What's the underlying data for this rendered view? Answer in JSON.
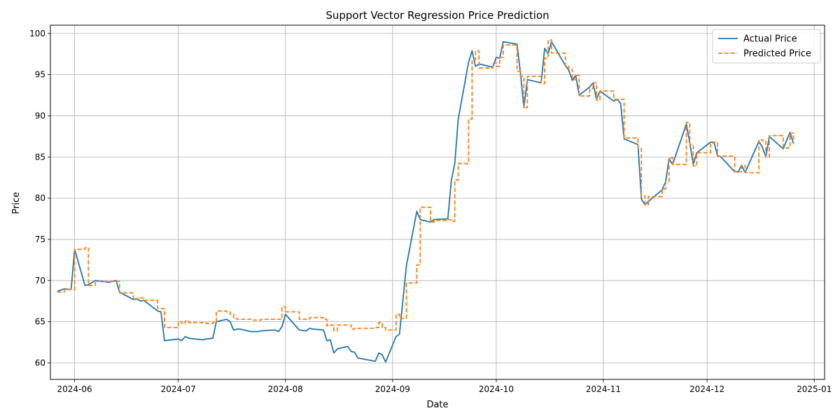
{
  "chart_data": {
    "type": "line",
    "title": "Support Vector Regression Price Prediction",
    "xlabel": "Date",
    "ylabel": "Price",
    "xlim": [
      "2024-05-25",
      "2025-01-04"
    ],
    "ylim": [
      58,
      101
    ],
    "x_ticks": [
      "2024-06-01",
      "2024-07-01",
      "2024-08-01",
      "2024-09-01",
      "2024-10-01",
      "2024-11-01",
      "2024-12-01",
      "2025-01-01"
    ],
    "x_tick_labels": [
      "2024-06",
      "2024-07",
      "2024-08",
      "2024-09",
      "2024-10",
      "2024-11",
      "2024-12",
      "2025-01"
    ],
    "y_ticks": [
      60,
      65,
      70,
      75,
      80,
      85,
      90,
      95,
      100
    ],
    "y_tick_labels": [
      "60",
      "65",
      "70",
      "75",
      "80",
      "85",
      "90",
      "95",
      "100"
    ],
    "grid": true,
    "legend_position": "top-right",
    "series": [
      {
        "name": "Actual Price",
        "color": "#1f77b4",
        "style": "solid",
        "x": [
          "2024-05-27",
          "2024-05-29",
          "2024-05-31",
          "2024-06-01",
          "2024-06-04",
          "2024-06-05",
          "2024-06-07",
          "2024-06-11",
          "2024-06-13",
          "2024-06-14",
          "2024-06-18",
          "2024-06-19",
          "2024-06-20",
          "2024-06-21",
          "2024-06-25",
          "2024-06-26",
          "2024-06-27",
          "2024-07-01",
          "2024-07-02",
          "2024-07-03",
          "2024-07-04",
          "2024-07-08",
          "2024-07-09",
          "2024-07-11",
          "2024-07-12",
          "2024-07-15",
          "2024-07-16",
          "2024-07-17",
          "2024-07-18",
          "2024-07-19",
          "2024-07-22",
          "2024-07-24",
          "2024-07-25",
          "2024-07-29",
          "2024-07-30",
          "2024-07-31",
          "2024-08-01",
          "2024-08-05",
          "2024-08-07",
          "2024-08-08",
          "2024-08-09",
          "2024-08-12",
          "2024-08-13",
          "2024-08-14",
          "2024-08-15",
          "2024-08-16",
          "2024-08-19",
          "2024-08-20",
          "2024-08-21",
          "2024-08-22",
          "2024-08-27",
          "2024-08-28",
          "2024-08-29",
          "2024-08-30",
          "2024-09-02",
          "2024-09-03",
          "2024-09-05",
          "2024-09-08",
          "2024-09-09",
          "2024-09-12",
          "2024-09-13",
          "2024-09-17",
          "2024-09-18",
          "2024-09-19",
          "2024-09-20",
          "2024-09-23",
          "2024-09-24",
          "2024-09-25",
          "2024-09-26",
          "2024-09-30",
          "2024-10-01",
          "2024-10-02",
          "2024-10-03",
          "2024-10-07",
          "2024-10-08",
          "2024-10-09",
          "2024-10-10",
          "2024-10-14",
          "2024-10-15",
          "2024-10-16",
          "2024-10-17",
          "2024-10-21",
          "2024-10-22",
          "2024-10-23",
          "2024-10-24",
          "2024-10-25",
          "2024-10-28",
          "2024-10-29",
          "2024-10-30",
          "2024-10-31",
          "2024-11-04",
          "2024-11-05",
          "2024-11-06",
          "2024-11-07",
          "2024-11-11",
          "2024-11-12",
          "2024-11-13",
          "2024-11-14",
          "2024-11-18",
          "2024-11-19",
          "2024-11-20",
          "2024-11-21",
          "2024-11-25",
          "2024-11-26",
          "2024-11-27",
          "2024-11-28",
          "2024-12-02",
          "2024-12-03",
          "2024-12-04",
          "2024-12-05",
          "2024-12-09",
          "2024-12-10",
          "2024-12-11",
          "2024-12-12",
          "2024-12-16",
          "2024-12-17",
          "2024-12-18",
          "2024-12-19",
          "2024-12-23",
          "2024-12-25",
          "2024-12-26"
        ],
        "values": [
          68.7,
          69.0,
          68.9,
          73.8,
          69.4,
          69.5,
          70.0,
          69.8,
          70.0,
          68.6,
          67.7,
          67.8,
          67.5,
          67.6,
          66.3,
          66.2,
          62.7,
          62.9,
          62.7,
          63.2,
          63.0,
          62.8,
          62.9,
          63.0,
          65.0,
          65.3,
          65.0,
          64.0,
          64.1,
          64.1,
          63.8,
          63.8,
          63.9,
          64.0,
          63.8,
          64.4,
          65.9,
          64.0,
          63.9,
          64.2,
          64.1,
          64.0,
          62.7,
          62.8,
          61.2,
          61.7,
          62.0,
          61.4,
          61.3,
          60.6,
          60.2,
          61.2,
          61.0,
          60.1,
          63.2,
          63.5,
          71.8,
          78.4,
          77.4,
          77.1,
          77.4,
          77.5,
          82.2,
          84.2,
          89.6,
          96.5,
          97.9,
          96.0,
          96.3,
          95.9,
          97.1,
          97.0,
          99.0,
          98.7,
          95.2,
          91.0,
          94.4,
          94.0,
          98.2,
          97.5,
          99.0,
          96.1,
          95.5,
          94.3,
          94.9,
          92.5,
          93.5,
          94.0,
          92.0,
          93.0,
          91.8,
          92.0,
          91.5,
          87.2,
          86.5,
          79.9,
          79.2,
          79.6,
          81.0,
          82.0,
          84.8,
          84.1,
          89.0,
          86.7,
          84.1,
          85.5,
          86.8,
          86.8,
          85.2,
          85.0,
          83.2,
          83.2,
          84.0,
          83.1,
          86.9,
          86.2,
          85.0,
          87.5,
          86.0,
          88.0,
          86.6
        ]
      },
      {
        "name": "Predicted Price",
        "color": "#ff7f0e",
        "style": "dashed",
        "x": [
          "2024-05-27",
          "2024-05-29",
          "2024-05-31",
          "2024-06-01",
          "2024-06-04",
          "2024-06-05",
          "2024-06-07",
          "2024-06-11",
          "2024-06-13",
          "2024-06-14",
          "2024-06-18",
          "2024-06-19",
          "2024-06-20",
          "2024-06-21",
          "2024-06-25",
          "2024-06-26",
          "2024-06-27",
          "2024-07-01",
          "2024-07-02",
          "2024-07-03",
          "2024-07-04",
          "2024-07-08",
          "2024-07-09",
          "2024-07-11",
          "2024-07-12",
          "2024-07-15",
          "2024-07-16",
          "2024-07-17",
          "2024-07-18",
          "2024-07-19",
          "2024-07-22",
          "2024-07-24",
          "2024-07-25",
          "2024-07-29",
          "2024-07-30",
          "2024-07-31",
          "2024-08-01",
          "2024-08-05",
          "2024-08-07",
          "2024-08-08",
          "2024-08-09",
          "2024-08-12",
          "2024-08-13",
          "2024-08-14",
          "2024-08-15",
          "2024-08-16",
          "2024-08-19",
          "2024-08-20",
          "2024-08-21",
          "2024-08-22",
          "2024-08-27",
          "2024-08-28",
          "2024-08-29",
          "2024-08-30",
          "2024-09-02",
          "2024-09-03",
          "2024-09-05",
          "2024-09-08",
          "2024-09-09",
          "2024-09-12",
          "2024-09-13",
          "2024-09-17",
          "2024-09-18",
          "2024-09-19",
          "2024-09-20",
          "2024-09-23",
          "2024-09-24",
          "2024-09-25",
          "2024-09-26",
          "2024-09-30",
          "2024-10-01",
          "2024-10-02",
          "2024-10-03",
          "2024-10-07",
          "2024-10-08",
          "2024-10-09",
          "2024-10-10",
          "2024-10-14",
          "2024-10-15",
          "2024-10-16",
          "2024-10-17",
          "2024-10-21",
          "2024-10-22",
          "2024-10-23",
          "2024-10-24",
          "2024-10-25",
          "2024-10-28",
          "2024-10-29",
          "2024-10-30",
          "2024-10-31",
          "2024-11-04",
          "2024-11-05",
          "2024-11-06",
          "2024-11-07",
          "2024-11-11",
          "2024-11-12",
          "2024-11-13",
          "2024-11-14",
          "2024-11-18",
          "2024-11-19",
          "2024-11-20",
          "2024-11-21",
          "2024-11-25",
          "2024-11-26",
          "2024-11-27",
          "2024-11-28",
          "2024-12-02",
          "2024-12-03",
          "2024-12-04",
          "2024-12-05",
          "2024-12-09",
          "2024-12-10",
          "2024-12-11",
          "2024-12-12",
          "2024-12-16",
          "2024-12-17",
          "2024-12-18",
          "2024-12-19",
          "2024-12-23",
          "2024-12-25",
          "2024-12-26"
        ],
        "values": [
          68.6,
          68.9,
          68.9,
          73.8,
          74.0,
          69.4,
          69.9,
          69.9,
          69.9,
          68.5,
          67.7,
          67.8,
          67.9,
          67.6,
          66.6,
          66.6,
          64.3,
          65.0,
          64.8,
          65.1,
          64.9,
          64.9,
          64.8,
          64.9,
          66.3,
          66.2,
          65.9,
          65.4,
          65.3,
          65.3,
          65.2,
          65.2,
          65.3,
          65.3,
          65.3,
          66.8,
          66.2,
          65.3,
          65.3,
          65.5,
          65.5,
          65.3,
          64.5,
          64.6,
          63.9,
          64.6,
          64.6,
          64.1,
          64.2,
          64.2,
          64.3,
          64.9,
          64.3,
          64.0,
          65.9,
          65.4,
          69.7,
          71.9,
          78.9,
          77.1,
          77.3,
          77.4,
          77.2,
          82.2,
          84.2,
          89.6,
          96.8,
          97.9,
          95.8,
          96.4,
          96.0,
          97.1,
          98.6,
          95.4,
          94.8,
          91.0,
          94.8,
          93.9,
          97.0,
          99.2,
          97.6,
          96.0,
          95.6,
          94.4,
          94.9,
          92.4,
          93.3,
          94.0,
          91.9,
          93.0,
          92.0,
          92.0,
          92.0,
          87.3,
          86.0,
          80.3,
          79.2,
          80.2,
          81.1,
          82.0,
          84.9,
          84.1,
          89.2,
          86.5,
          83.9,
          85.5,
          86.7,
          86.8,
          85.1,
          85.1,
          83.2,
          83.2,
          84.0,
          83.1,
          87.1,
          87.0,
          85.0,
          87.6,
          86.1,
          87.9,
          86.6
        ]
      }
    ]
  }
}
